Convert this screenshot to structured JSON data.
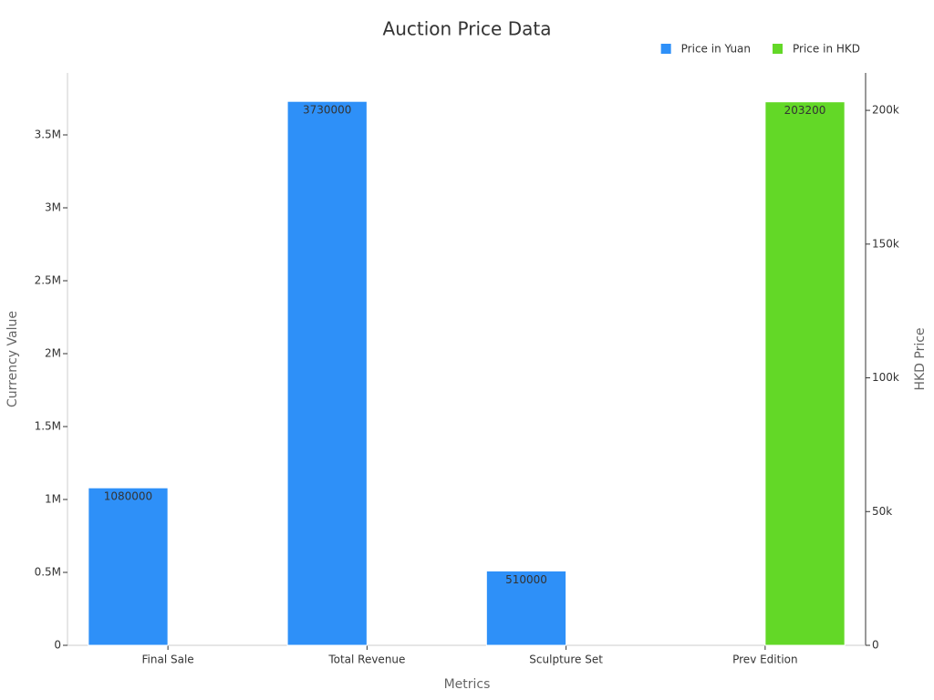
{
  "chart_data": {
    "type": "bar",
    "title": "Auction Price Data",
    "xlabel": "Metrics",
    "ylabel": "Currency Value",
    "y2label": "HKD Price",
    "categories": [
      "Final Sale",
      "Total Revenue",
      "Sculpture Set",
      "Prev Edition"
    ],
    "series": [
      {
        "name": "Price in Yuan",
        "color": "#2e90f8",
        "values": [
          1080000,
          3730000,
          510000,
          null
        ]
      },
      {
        "name": "Price in HKD",
        "color": "#63d827",
        "axis": "y2",
        "values": [
          null,
          null,
          null,
          203200
        ]
      }
    ],
    "ylim": [
      0,
      3925000
    ],
    "yticks": [
      0,
      {
        "value": 500000,
        "label": "0.5M"
      },
      {
        "value": 1000000,
        "label": "1M"
      },
      {
        "value": 1500000,
        "label": "1.5M"
      },
      {
        "value": 2000000,
        "label": "2M"
      },
      {
        "value": 2500000,
        "label": "2.5M"
      },
      {
        "value": 3000000,
        "label": "3M"
      },
      {
        "value": 3500000,
        "label": "3.5M"
      }
    ],
    "y2lim": [
      0,
      214000
    ],
    "y2ticks": [
      0,
      {
        "value": 50000,
        "label": "50k"
      },
      {
        "value": 100000,
        "label": "100k"
      },
      {
        "value": 150000,
        "label": "150k"
      },
      {
        "value": 200000,
        "label": "200k"
      }
    ],
    "legend": "top-right",
    "grid": false
  }
}
